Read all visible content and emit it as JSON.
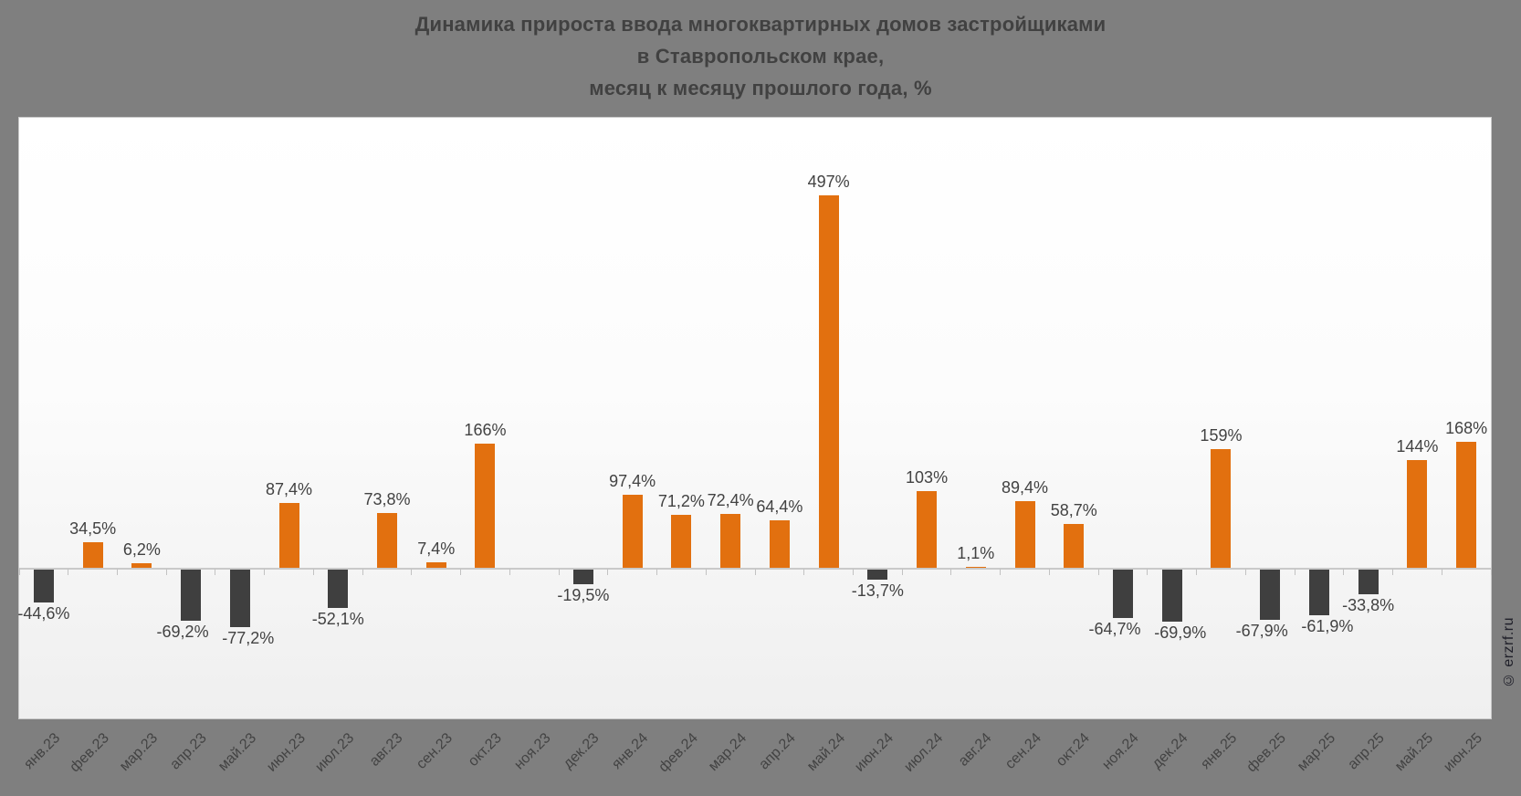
{
  "title": {
    "line1": "Динамика прироста ввода многоквартирных домов застройщиками",
    "line2": "в Ставропольском крае,",
    "line3": "месяц к месяцу прошлого года, %"
  },
  "watermark": "© erzrf.ru",
  "colors": {
    "page_background": "#7F7F7F",
    "positive_bar": "#E2700F",
    "negative_bar": "#3F3F3F",
    "axis_line": "#C9C9C9",
    "value_label_text": "#424242",
    "month_label_text": "#434343",
    "title_text": "#414141",
    "panel_gradient_top": "#FFFFFF",
    "panel_gradient_bottom": "#EFEFEF",
    "watermark_text": "#20202A"
  },
  "chart_data": {
    "type": "bar",
    "title": "Динамика прироста ввода многоквартирных домов застройщиками в Ставропольском крае, месяц к месяцу прошлого года, %",
    "xlabel": "",
    "ylabel": "",
    "grid": false,
    "legend": null,
    "ylim": [
      -200,
      600
    ],
    "categories": [
      "янв.23",
      "фев.23",
      "мар.23",
      "апр.23",
      "май.23",
      "июн.23",
      "июл.23",
      "авг.23",
      "сен.23",
      "окт.23",
      "ноя.23",
      "дек.23",
      "янв.24",
      "фев.24",
      "мар.24",
      "апр.24",
      "май.24",
      "июн.24",
      "июл.24",
      "авг.24",
      "сен.24",
      "окт.24",
      "ноя.24",
      "дек.24",
      "янв.25",
      "фев.25",
      "мар.25",
      "апр.25",
      "май.25",
      "июн.25"
    ],
    "values": [
      -44.6,
      34.5,
      6.2,
      -69.2,
      -77.2,
      87.4,
      -52.1,
      73.8,
      7.4,
      166,
      null,
      -19.5,
      97.4,
      71.2,
      72.4,
      64.4,
      497,
      -13.7,
      103,
      1.1,
      89.4,
      58.7,
      -64.7,
      -69.9,
      159,
      -67.9,
      -61.9,
      -33.8,
      144,
      168
    ],
    "labels": [
      "-44,6%",
      "34,5%",
      "6,2%",
      "-69,2%",
      "-77,2%",
      "87,4%",
      "-52,1%",
      "73,8%",
      "7,4%",
      "166%",
      "",
      "-19,5%",
      "97,4%",
      "71,2%",
      "72,4%",
      "64,4%",
      "497%",
      "-13,7%",
      "103%",
      "1,1%",
      "89,4%",
      "58,7%",
      "-64,7%",
      "-69,9%",
      "159%",
      "-67,9%",
      "-61,9%",
      "-33,8%",
      "144%",
      "168%"
    ]
  }
}
